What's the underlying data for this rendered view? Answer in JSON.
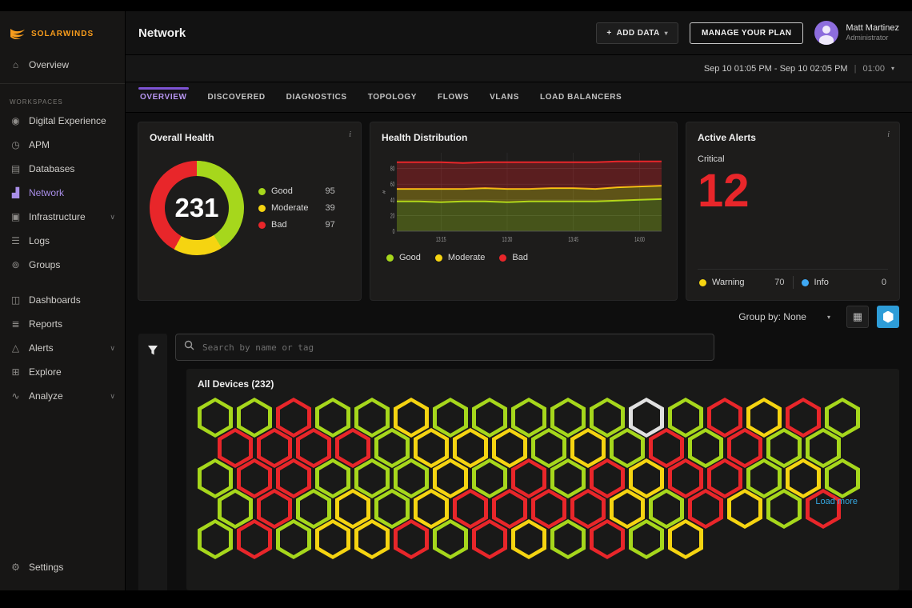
{
  "brand": {
    "name": "SOLARWINDS",
    "color": "#f99d1c"
  },
  "sidebar": {
    "overview": {
      "label": "Overview",
      "icon": "home-icon"
    },
    "section_label": "WORKSPACES",
    "workspaces": [
      {
        "label": "Digital Experience",
        "icon": "digital-experience-icon",
        "glyph": "◉",
        "active": false,
        "chevron": false
      },
      {
        "label": "APM",
        "icon": "apm-icon",
        "glyph": "◷",
        "active": false,
        "chevron": false
      },
      {
        "label": "Databases",
        "icon": "databases-icon",
        "glyph": "▤",
        "active": false,
        "chevron": false
      },
      {
        "label": "Network",
        "icon": "network-icon",
        "glyph": "▟",
        "active": true,
        "chevron": false
      },
      {
        "label": "Infrastructure",
        "icon": "infrastructure-icon",
        "glyph": "▣",
        "active": false,
        "chevron": true
      },
      {
        "label": "Logs",
        "icon": "logs-icon",
        "glyph": "☰",
        "active": false,
        "chevron": false
      },
      {
        "label": "Groups",
        "icon": "groups-icon",
        "glyph": "⊚",
        "active": false,
        "chevron": false
      }
    ],
    "secondary": [
      {
        "label": "Dashboards",
        "icon": "dashboards-icon",
        "glyph": "◫",
        "active": false,
        "chevron": false
      },
      {
        "label": "Reports",
        "icon": "reports-icon",
        "glyph": "≣",
        "active": false,
        "chevron": false
      },
      {
        "label": "Alerts",
        "icon": "alerts-icon",
        "glyph": "△",
        "active": false,
        "chevron": true
      },
      {
        "label": "Explore",
        "icon": "explore-icon",
        "glyph": "⊞",
        "active": false,
        "chevron": false
      },
      {
        "label": "Analyze",
        "icon": "analyze-icon",
        "glyph": "∿",
        "active": false,
        "chevron": true
      }
    ],
    "settings": {
      "label": "Settings",
      "glyph": "⚙"
    }
  },
  "header": {
    "title": "Network",
    "add_data_label": "ADD DATA",
    "manage_plan_label": "MANAGE YOUR PLAN",
    "user": {
      "name": "Matt Martinez",
      "subtitle": "Administrator"
    }
  },
  "timebar": {
    "range": "Sep 10 01:05 PM - Sep 10 02:05 PM",
    "separator": "|",
    "duration": "01:00"
  },
  "tabs": [
    {
      "label": "OVERVIEW",
      "active": true
    },
    {
      "label": "DISCOVERED",
      "active": false
    },
    {
      "label": "DIAGNOSTICS",
      "active": false
    },
    {
      "label": "TOPOLOGY",
      "active": false
    },
    {
      "label": "FLOWS",
      "active": false
    },
    {
      "label": "VLANS",
      "active": false
    },
    {
      "label": "LOAD BALANCERS",
      "active": false
    }
  ],
  "cards": {
    "overall_health": {
      "title": "Overall Health",
      "total": "231",
      "legend": [
        {
          "label": "Good",
          "value": 95,
          "color": "#a6d71c"
        },
        {
          "label": "Moderate",
          "value": 39,
          "color": "#f5d411"
        },
        {
          "label": "Bad",
          "value": 97,
          "color": "#e8262a"
        }
      ]
    },
    "health_distribution": {
      "title": "Health Distribution"
    },
    "active_alerts": {
      "title": "Active Alerts",
      "critical_label": "Critical",
      "critical_value": "12",
      "items": [
        {
          "label": "Warning",
          "value": 70,
          "color": "#f5d411"
        },
        {
          "label": "Info",
          "value": 0,
          "color": "#3fa9f5"
        }
      ]
    }
  },
  "chart_data": [
    {
      "type": "pie",
      "title": "Overall Health",
      "labels": [
        "Good",
        "Moderate",
        "Bad"
      ],
      "values": [
        95,
        39,
        97
      ],
      "colors": [
        "#a6d71c",
        "#f5d411",
        "#e8262a"
      ],
      "center_total": 231
    },
    {
      "type": "area",
      "title": "Health Distribution",
      "stacked": true,
      "ylabel": "#",
      "ylim": [
        0,
        100
      ],
      "yticks": [
        0,
        20,
        40,
        60,
        80
      ],
      "xticks": [
        {
          "label": "13:15",
          "pos": 0.167
        },
        {
          "label": "13:30",
          "pos": 0.417
        },
        {
          "label": "13:45",
          "pos": 0.667
        },
        {
          "label": "14:00",
          "pos": 0.917
        }
      ],
      "series": [
        {
          "name": "Good",
          "color": "#a6d71c",
          "values": [
            38,
            38,
            37,
            38,
            38,
            37,
            38,
            38,
            38,
            38,
            39,
            40,
            41
          ]
        },
        {
          "name": "Moderate",
          "color": "#f5d411",
          "values": [
            16,
            16,
            17,
            16,
            17,
            17,
            16,
            17,
            17,
            16,
            17,
            17,
            17
          ]
        },
        {
          "name": "Bad",
          "color": "#e8262a",
          "values": [
            34,
            34,
            34,
            33,
            33,
            34,
            34,
            33,
            33,
            34,
            33,
            32,
            31
          ]
        }
      ],
      "legend_position": "bottom",
      "grid": true
    }
  ],
  "toolbar": {
    "group_by_label": "Group by: None",
    "view_icons": [
      "table-view-icon",
      "honeycomb-view-icon"
    ]
  },
  "search": {
    "placeholder": "Search by name or tag"
  },
  "devices": {
    "title": "All Devices (232)",
    "load_more_label": "Load more",
    "hex_colors": {
      "g": "#a6d71c",
      "y": "#f5d411",
      "r": "#e8262a",
      "w": "#e0e0e0"
    },
    "rows": [
      [
        "g",
        "g",
        "r",
        "g",
        "g",
        "y",
        "g",
        "g",
        "g",
        "g",
        "g",
        "w",
        "g",
        "r",
        "y",
        "r",
        "g"
      ],
      [
        "r",
        "r",
        "r",
        "r",
        "g",
        "y",
        "y",
        "y",
        "g",
        "y",
        "g",
        "r",
        "g",
        "r",
        "g",
        "g"
      ],
      [
        "g",
        "r",
        "r",
        "g",
        "g",
        "g",
        "y",
        "g",
        "r",
        "g",
        "r",
        "y",
        "r",
        "r",
        "g",
        "y",
        "g"
      ],
      [
        "g",
        "r",
        "g",
        "y",
        "g",
        "y",
        "r",
        "r",
        "r",
        "r",
        "y",
        "g",
        "r",
        "y",
        "g",
        "r"
      ],
      [
        "g",
        "r",
        "g",
        "y",
        "y",
        "r",
        "g",
        "r",
        "y",
        "g",
        "r",
        "g",
        "y"
      ]
    ]
  }
}
